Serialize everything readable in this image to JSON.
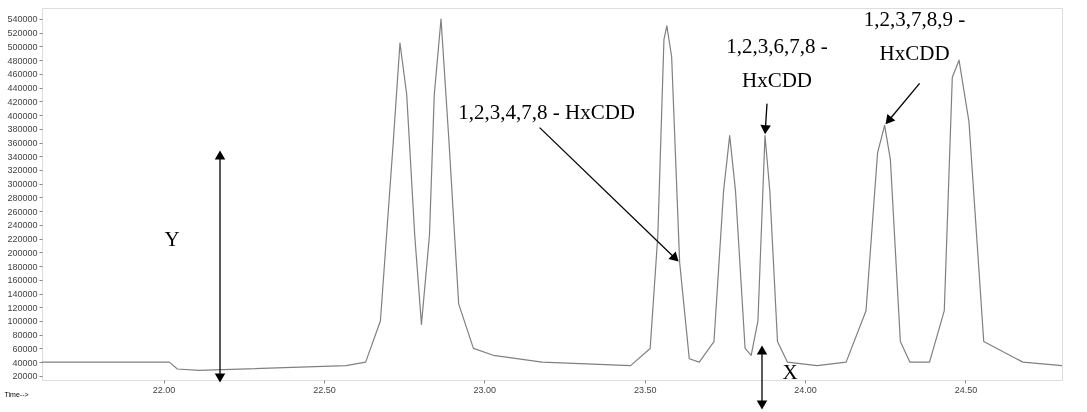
{
  "chart_data": {
    "type": "line",
    "xlabel": "Time-->",
    "x": [
      21.621,
      22.018,
      22.043,
      22.11,
      22.569,
      22.63,
      22.676,
      22.716,
      22.737,
      22.758,
      22.783,
      22.804,
      22.829,
      22.844,
      22.865,
      22.89,
      22.92,
      22.966,
      23.028,
      23.18,
      23.456,
      23.517,
      23.541,
      23.56,
      23.569,
      23.584,
      23.609,
      23.639,
      23.67,
      23.716,
      23.746,
      23.765,
      23.783,
      23.813,
      23.832,
      23.853,
      23.875,
      23.89,
      23.914,
      23.945,
      24.037,
      24.128,
      24.19,
      24.226,
      24.248,
      24.266,
      24.297,
      24.327,
      24.388,
      24.434,
      24.459,
      24.48,
      24.511,
      24.557,
      24.679,
      24.801
    ],
    "series": [
      {
        "color": "#808080",
        "values": [
          40000,
          40000,
          30000,
          28000,
          35000,
          40000,
          100000,
          360000,
          505000,
          430000,
          225000,
          95000,
          225000,
          430000,
          540000,
          360000,
          125000,
          60000,
          50000,
          40000,
          35000,
          60000,
          225000,
          510000,
          530000,
          485000,
          185000,
          45000,
          40000,
          70000,
          290000,
          370000,
          290000,
          60000,
          50000,
          100000,
          370000,
          290000,
          70000,
          40000,
          35000,
          40000,
          115000,
          345000,
          385000,
          335000,
          70000,
          40000,
          40000,
          115000,
          455000,
          480000,
          390000,
          70000,
          40000,
          35000
        ]
      }
    ],
    "xlim": [
      21.621,
      24.801
    ],
    "ylim": [
      14000,
      556000
    ],
    "xticks": [
      {
        "value": 22,
        "label": "22.00"
      },
      {
        "value": 22.5,
        "label": "22.50"
      },
      {
        "value": 23,
        "label": "23.00"
      },
      {
        "value": 23.5,
        "label": "23.50"
      },
      {
        "value": 24,
        "label": "24.00"
      },
      {
        "value": 24.5,
        "label": "24.50"
      }
    ],
    "yticks": [
      20000,
      40000,
      60000,
      80000,
      100000,
      120000,
      140000,
      160000,
      180000,
      200000,
      220000,
      240000,
      260000,
      280000,
      300000,
      320000,
      340000,
      360000,
      380000,
      400000,
      420000,
      440000,
      460000,
      480000,
      500000,
      520000,
      540000
    ],
    "grid": false,
    "annotations": [
      "Y",
      "X",
      {
        "text": "1,2,3,4,7,8 - HxCDD",
        "x": 23.609,
        "y": 185000
      },
      {
        "text": "1,2,3,6,7,8 -\nHxCDD",
        "x": 23.875,
        "y": 370000
      },
      {
        "text": "1,2,3,7,8,9 -\nHxCDD",
        "x": 24.248,
        "y": 385000
      }
    ]
  }
}
